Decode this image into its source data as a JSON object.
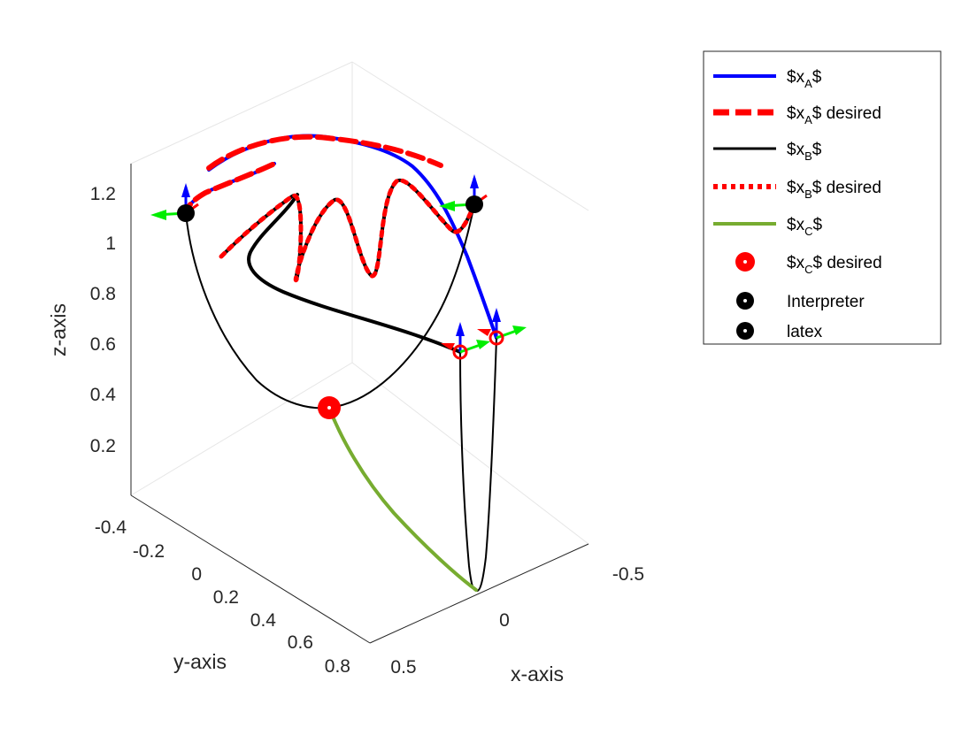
{
  "chart_data": {
    "type": "line3d",
    "title": "",
    "xlabel": "x-axis",
    "ylabel": "y-axis",
    "zlabel": "z-axis",
    "x_ticks": [
      "0.5",
      "0",
      "-0.5"
    ],
    "y_ticks": [
      "-0.4",
      "-0.2",
      "0",
      "0.2",
      "0.4",
      "0.6",
      "0.8"
    ],
    "z_ticks": [
      "0.2",
      "0.4",
      "0.6",
      "0.8",
      "1",
      "1.2"
    ],
    "xlim": [
      0.5,
      -0.5
    ],
    "ylim": [
      -0.4,
      0.8
    ],
    "zlim": [
      0.1,
      1.3
    ],
    "grid": true,
    "legend_position": "outside top-right",
    "legend": [
      {
        "text": "$x",
        "sub": "A",
        "after": "$",
        "style": "solid-blue"
      },
      {
        "text": "$x",
        "sub": "A",
        "after": "$ desired",
        "style": "dash-red-thick"
      },
      {
        "text": "$x",
        "sub": "B",
        "after": "$",
        "style": "solid-black"
      },
      {
        "text": "$x",
        "sub": "B",
        "after": "$ desired",
        "style": "dot-red"
      },
      {
        "text": "$x",
        "sub": "C",
        "after": "$",
        "style": "solid-green"
      },
      {
        "text": "$x",
        "sub": "C",
        "after": "$ desired",
        "style": "marker-red"
      },
      {
        "text": "Interpreter",
        "sub": "",
        "after": "",
        "style": "marker-black"
      },
      {
        "text": "latex",
        "sub": "",
        "after": "",
        "style": "marker-black"
      }
    ],
    "colors": {
      "xA": "#0000ff",
      "xA_desired": "#ff0000",
      "xB": "#000000",
      "xB_desired": "#ff0000",
      "xC": "#77ac30",
      "xC_desired": "#ff0000",
      "frame_z": "#0000ff",
      "frame_y": "#00ee00",
      "frame_x": "#ff0000"
    }
  }
}
